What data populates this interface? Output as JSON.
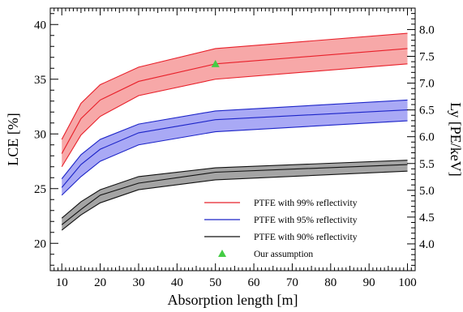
{
  "chart_data": {
    "type": "area",
    "xlabel": "Absorption length [m]",
    "ylabel": "LCE [%]",
    "y2label": "Ly [PE/keV]",
    "xlim": [
      7,
      102
    ],
    "ylim": [
      17.5,
      41.5
    ],
    "y2lim": [
      3.5,
      8.4
    ],
    "x_ticks": [
      10,
      20,
      30,
      40,
      50,
      60,
      70,
      80,
      90,
      100
    ],
    "y_ticks": [
      20,
      25,
      30,
      35,
      40
    ],
    "y2_ticks": [
      "4.0",
      "4.5",
      "5.0",
      "5.5",
      "6.0",
      "6.5",
      "7.0",
      "7.5",
      "8.0"
    ],
    "grid": false,
    "legend_position": "bottom-right",
    "x": [
      10,
      15,
      20,
      30,
      50,
      100
    ],
    "series": [
      {
        "name": "PTFE with 99% reflectivity",
        "color": "#e8202a",
        "band_fill": "#f7a8a8",
        "values": [
          28.2,
          31.4,
          33.1,
          34.8,
          36.4,
          37.8
        ],
        "lower": [
          27.0,
          29.9,
          31.6,
          33.5,
          35.0,
          36.4
        ],
        "upper": [
          29.5,
          32.8,
          34.5,
          36.1,
          37.8,
          39.2
        ]
      },
      {
        "name": "PTFE with 95% reflectivity",
        "color": "#1c24c8",
        "band_fill": "#a9a9f5",
        "values": [
          25.1,
          27.2,
          28.6,
          30.1,
          31.3,
          32.2
        ],
        "lower": [
          24.4,
          26.1,
          27.5,
          29.0,
          30.2,
          31.2
        ],
        "upper": [
          25.9,
          28.1,
          29.5,
          30.9,
          32.1,
          33.1
        ]
      },
      {
        "name": "PTFE with 90% reflectivity",
        "color": "#111111",
        "band_fill": "#a4a4a4",
        "values": [
          21.7,
          23.1,
          24.4,
          25.5,
          26.5,
          27.2
        ],
        "lower": [
          21.2,
          22.6,
          23.7,
          24.9,
          25.8,
          26.6
        ],
        "upper": [
          22.3,
          23.8,
          24.9,
          26.1,
          26.9,
          27.6
        ]
      }
    ],
    "markers": [
      {
        "name": "Our assumption",
        "x": 50,
        "y": 36.4,
        "color": "#44cc44",
        "shape": "triangle"
      }
    ]
  }
}
